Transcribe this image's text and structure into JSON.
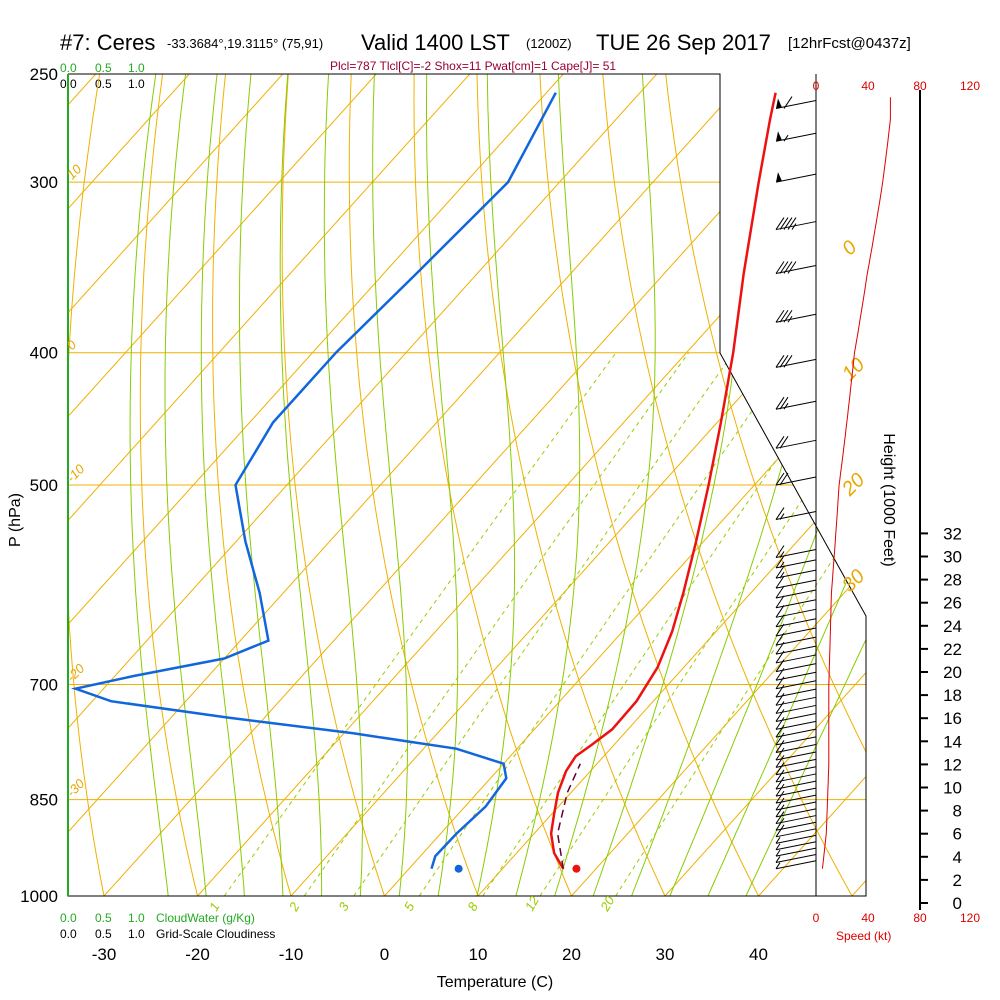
{
  "header": {
    "station": "#7: Ceres",
    "coords": "-33.3684°,19.3115° (75,91)",
    "valid": "Valid 1400 LST",
    "zulu": "(1200Z)",
    "date": "TUE 26 Sep 2017",
    "forecast": "[12hrFcst@0437z]",
    "indices": "Plcl=787 Tlcl[C]=-2 Shox=11 Pwat[cm]=1 Cape[J]= 51"
  },
  "colors": {
    "temperature": "#ee1111",
    "dewpoint": "#1166dd",
    "parcel": "#660033",
    "isotherm": "#f0b000",
    "dry_adiabat": "#f0b000",
    "moist_adiabat": "#88cc00",
    "mixing_ratio": "#99cc00",
    "cloud_water": "#22aa22",
    "speed": "#dd0000",
    "indices": "#990033"
  },
  "legend": {
    "cloud_water_label": "CloudWater (g/Kg)",
    "cloudiness_label": "Grid-Scale Cloudiness",
    "cw_ticks": [
      "0.0",
      "0.5",
      "1.0"
    ],
    "cl_ticks": [
      "0.0",
      "0.5",
      "1.0"
    ]
  },
  "speed_axis": {
    "label": "Speed (kt)",
    "ticks": [
      "0",
      "40",
      "80",
      "120"
    ]
  },
  "height_axis": {
    "label": "Height (1000 Feet)",
    "ticks": [
      "0",
      "2",
      "4",
      "6",
      "8",
      "10",
      "12",
      "14",
      "16",
      "18",
      "20",
      "22",
      "24",
      "26",
      "28",
      "30",
      "32"
    ]
  },
  "chart_data": {
    "type": "skew-t",
    "xlabel": "Temperature (C)",
    "ylabel": "P (hPa)",
    "x_ticks": [
      -30,
      -20,
      -10,
      0,
      10,
      20,
      30,
      40
    ],
    "pressure_labels": [
      250,
      300,
      400,
      500,
      700,
      850,
      1000
    ],
    "xlim": [
      -34,
      36
    ],
    "ylim_hpa": [
      1000,
      250
    ],
    "isotherm_labels": [
      -30,
      -20,
      -10,
      0,
      10,
      20,
      30
    ],
    "mixing_ratio_labels": [
      "1",
      "2",
      "3",
      "5",
      "8",
      "12",
      "20"
    ],
    "temperature_profile": [
      {
        "p": 955,
        "t": 16.5
      },
      {
        "p": 930,
        "t": 14.0
      },
      {
        "p": 900,
        "t": 11.8
      },
      {
        "p": 870,
        "t": 10.2
      },
      {
        "p": 840,
        "t": 8.6
      },
      {
        "p": 810,
        "t": 7.4
      },
      {
        "p": 790,
        "t": 7.0
      },
      {
        "p": 775,
        "t": 7.6
      },
      {
        "p": 755,
        "t": 8.3
      },
      {
        "p": 720,
        "t": 8.2
      },
      {
        "p": 680,
        "t": 7.2
      },
      {
        "p": 640,
        "t": 5.3
      },
      {
        "p": 600,
        "t": 2.8
      },
      {
        "p": 550,
        "t": -0.8
      },
      {
        "p": 500,
        "t": -4.9
      },
      {
        "p": 450,
        "t": -9.6
      },
      {
        "p": 400,
        "t": -15.0
      },
      {
        "p": 350,
        "t": -21.5
      },
      {
        "p": 300,
        "t": -28.7
      },
      {
        "p": 270,
        "t": -33.5
      },
      {
        "p": 258,
        "t": -35.5
      }
    ],
    "dewpoint_profile": [
      {
        "p": 955,
        "td": 2.4
      },
      {
        "p": 935,
        "td": 1.6
      },
      {
        "p": 900,
        "td": 1.7
      },
      {
        "p": 860,
        "td": 2.2
      },
      {
        "p": 820,
        "td": 1.7
      },
      {
        "p": 800,
        "td": 0.0
      },
      {
        "p": 780,
        "td": -6.5
      },
      {
        "p": 760,
        "td": -19.0
      },
      {
        "p": 740,
        "td": -34.0
      },
      {
        "p": 720,
        "td": -48.0
      },
      {
        "p": 705,
        "td": -53.0
      },
      {
        "p": 690,
        "td": -48.0
      },
      {
        "p": 670,
        "td": -40.0
      },
      {
        "p": 650,
        "td": -37.0
      },
      {
        "p": 600,
        "td": -42.5
      },
      {
        "p": 550,
        "td": -49.0
      },
      {
        "p": 500,
        "td": -55.5
      },
      {
        "p": 450,
        "td": -57.5
      },
      {
        "p": 400,
        "td": -57.5
      },
      {
        "p": 350,
        "td": -56.5
      },
      {
        "p": 300,
        "td": -55.5
      },
      {
        "p": 258,
        "td": -59.0
      }
    ],
    "parcel_profile": [
      {
        "p": 955,
        "t": 16.5
      },
      {
        "p": 900,
        "t": 12.5
      },
      {
        "p": 840,
        "t": 9.6
      },
      {
        "p": 800,
        "t": 8.2
      }
    ],
    "surface_temperature_point": {
      "p": 955,
      "t": 17.9
    },
    "surface_dewpoint_point": {
      "p": 955,
      "td": 5.3
    },
    "wind_profile": [
      {
        "p": 955,
        "spd": 5
      },
      {
        "p": 900,
        "spd": 8
      },
      {
        "p": 850,
        "spd": 9
      },
      {
        "p": 800,
        "spd": 10
      },
      {
        "p": 700,
        "spd": 10
      },
      {
        "p": 600,
        "spd": 12
      },
      {
        "p": 500,
        "spd": 18
      },
      {
        "p": 400,
        "spd": 30
      },
      {
        "p": 350,
        "spd": 40
      },
      {
        "p": 300,
        "spd": 52
      },
      {
        "p": 270,
        "spd": 58
      }
    ]
  }
}
